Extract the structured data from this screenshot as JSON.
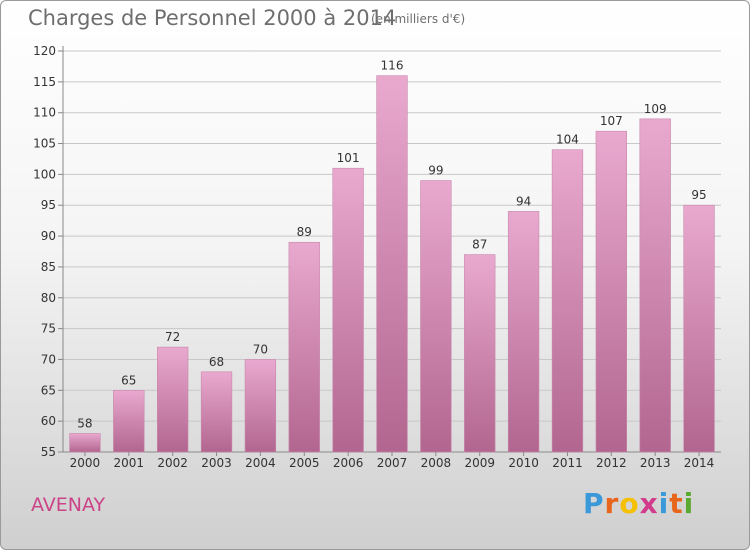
{
  "header": {
    "title": "Charges de Personnel 2000 à 2014",
    "subtitle": "(en milliers d'€)"
  },
  "place_name": "AVENAY",
  "logo": {
    "text": "Proxiti",
    "letters": [
      "P",
      "r",
      "o",
      "x",
      "i",
      "t",
      "i"
    ],
    "letter_colors": [
      "#3a9ad9",
      "#e8661c",
      "#f5c000",
      "#d23c8c",
      "#3a9ad9",
      "#e8661c",
      "#5aaa32"
    ]
  },
  "colors": {
    "bar_top": "#e9a9cf",
    "bar_bottom": "#b2668f",
    "bar_stroke": "#c987ad",
    "grid": "#c8c8c8",
    "axis_text": "#333333",
    "label_text": "#333333"
  },
  "chart_data": {
    "type": "bar",
    "title": "Charges de Personnel 2000 à 2014",
    "subtitle": "(en milliers d'€)",
    "categories": [
      "2000",
      "2001",
      "2002",
      "2003",
      "2004",
      "2005",
      "2006",
      "2007",
      "2008",
      "2009",
      "2010",
      "2011",
      "2012",
      "2013",
      "2014"
    ],
    "values": [
      58,
      65,
      72,
      68,
      70,
      89,
      101,
      116,
      99,
      87,
      94,
      104,
      107,
      109,
      95
    ],
    "ylim": [
      55,
      120
    ],
    "yticks": [
      55,
      60,
      65,
      70,
      75,
      80,
      85,
      90,
      95,
      100,
      105,
      110,
      115,
      120
    ],
    "grid": true,
    "legend": "none"
  }
}
